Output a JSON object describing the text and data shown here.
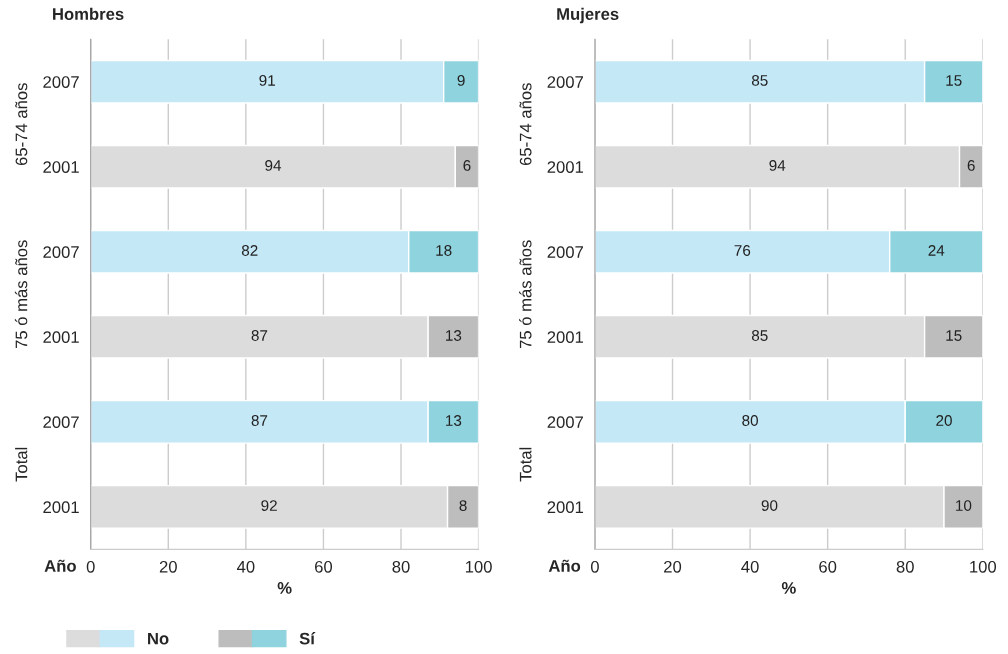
{
  "chart_data": [
    {
      "type": "bar",
      "orientation": "horizontal",
      "stacked": true,
      "title": "Hombres",
      "xlabel": "%",
      "ylabel": "Año",
      "categories": [
        "2007",
        "2001",
        "2007",
        "2001",
        "2007",
        "2001"
      ],
      "annotations": [
        "65-74 años",
        "75 ó más años",
        "Total"
      ],
      "series": [
        {
          "name": "No",
          "colors": [
            "#c5e8f7",
            "#dcdcdc",
            "#c5e8f7",
            "#dcdcdc",
            "#c5e8f7",
            "#dcdcdc"
          ],
          "values": [
            91,
            94,
            82,
            87,
            87,
            92
          ]
        },
        {
          "name": "Sí",
          "colors": [
            "#8fd3de",
            "#bdbdbd",
            "#8fd3de",
            "#bdbdbd",
            "#8fd3de",
            "#bdbdbd"
          ],
          "values": [
            9,
            6,
            18,
            13,
            13,
            8
          ]
        }
      ],
      "xlim": [
        0,
        100
      ],
      "xticks": [
        0,
        20,
        40,
        60,
        80,
        100
      ],
      "grid": "x",
      "data_labels": true,
      "legend": "bottom"
    },
    {
      "type": "bar",
      "orientation": "horizontal",
      "stacked": true,
      "title": "Mujeres",
      "xlabel": "%",
      "ylabel": "Año",
      "categories": [
        "2007",
        "2001",
        "2007",
        "2001",
        "2007",
        "2001"
      ],
      "annotations": [
        "65-74 años",
        "75 ó más años",
        "Total"
      ],
      "series": [
        {
          "colors": [
            "#c5e8f7",
            "#dcdcdc",
            "#c5e8f7",
            "#dcdcdc",
            "#c5e8f7",
            "#dcdcdc"
          ],
          "values": [
            85,
            94,
            76,
            85,
            80,
            90
          ]
        },
        {
          "colors": [
            "#8fd3de",
            "#bdbdbd",
            "#8fd3de",
            "#bdbdbd",
            "#8fd3de",
            "#bdbdbd"
          ],
          "values": [
            15,
            6,
            24,
            15,
            20,
            10
          ]
        }
      ],
      "xlim": [
        0,
        100
      ],
      "xticks": [
        0,
        20,
        40,
        60,
        80,
        100
      ],
      "grid": "x",
      "data_labels": true
    }
  ]
}
